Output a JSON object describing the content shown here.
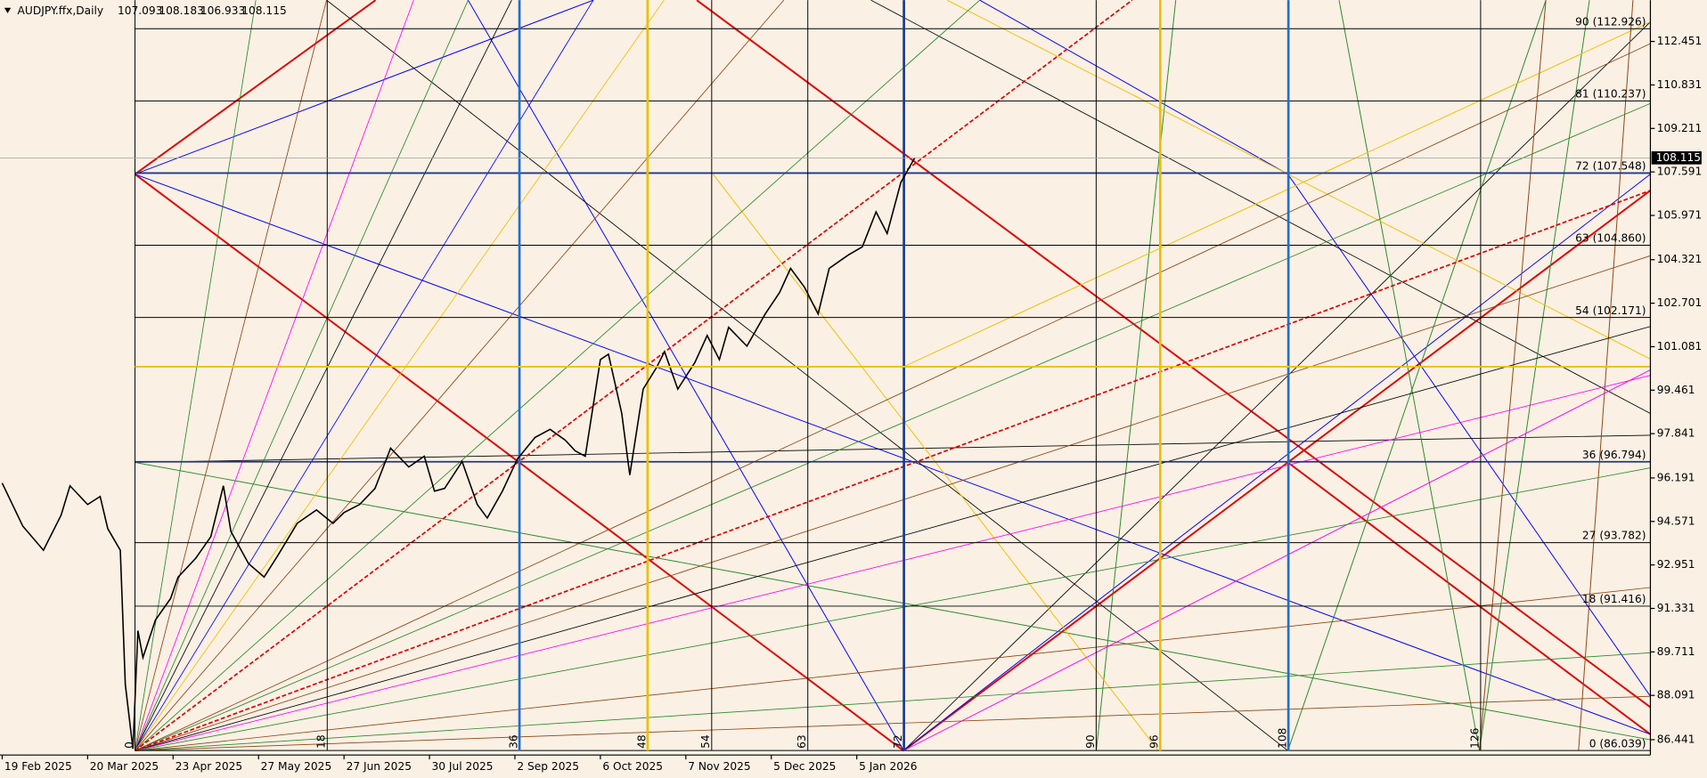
{
  "chart_data": {
    "type": "line",
    "title": "AUDJPY.ffx,Daily",
    "ohlc": [
      107.093,
      108.183,
      106.933,
      108.115
    ],
    "xticks": [
      {
        "value": "2025-02-19",
        "label": "19 Feb 2025"
      },
      {
        "value": "2025-03-20",
        "label": "20 Mar 2025"
      },
      {
        "value": "2025-04-23",
        "label": "23 Apr 2025"
      },
      {
        "value": "2025-05-27",
        "label": "27 May 2025"
      },
      {
        "value": "2025-06-27",
        "label": "27 Jun 2025"
      },
      {
        "value": "2025-07-30",
        "label": "30 Jul 2025"
      },
      {
        "value": "2025-09-02",
        "label": "2 Sep 2025"
      },
      {
        "value": "2025-10-06",
        "label": "6 Oct 2025"
      },
      {
        "value": "2025-11-07",
        "label": "7 Nov 2025"
      },
      {
        "value": "2025-12-05",
        "label": "5 Dec 2025"
      },
      {
        "value": "2026-01-05",
        "label": "5 Jan 2026"
      }
    ],
    "ylim": [
      85.87,
      113.99
    ],
    "yticks": [
      112.451,
      110.831,
      109.211,
      107.591,
      105.971,
      104.321,
      102.701,
      101.081,
      99.461,
      97.841,
      96.191,
      94.571,
      92.951,
      91.331,
      89.711,
      88.091,
      86.441
    ],
    "x": [
      "2025-02-19",
      "2025-02-26",
      "2025-03-05",
      "2025-03-11",
      "2025-03-14",
      "2025-03-20",
      "2025-03-25",
      "2025-03-28",
      "2025-04-02",
      "2025-04-04",
      "2025-04-07",
      "2025-04-09",
      "2025-04-11",
      "2025-04-16",
      "2025-04-22",
      "2025-04-25",
      "2025-05-02",
      "2025-05-08",
      "2025-05-13",
      "2025-05-16",
      "2025-05-23",
      "2025-05-29",
      "2025-06-03",
      "2025-06-10",
      "2025-06-17",
      "2025-06-23",
      "2025-06-27",
      "2025-07-03",
      "2025-07-09",
      "2025-07-15",
      "2025-07-22",
      "2025-07-28",
      "2025-08-01",
      "2025-08-05",
      "2025-08-12",
      "2025-08-18",
      "2025-08-22",
      "2025-08-28",
      "2025-09-03",
      "2025-09-10",
      "2025-09-16",
      "2025-09-22",
      "2025-09-26",
      "2025-09-30",
      "2025-10-06",
      "2025-10-09",
      "2025-10-14",
      "2025-10-17",
      "2025-10-22",
      "2025-10-27",
      "2025-10-30",
      "2025-11-04",
      "2025-11-10",
      "2025-11-14",
      "2025-11-18",
      "2025-11-21",
      "2025-11-27",
      "2025-12-03",
      "2025-12-08",
      "2025-12-12",
      "2025-12-17",
      "2025-12-22",
      "2025-12-26",
      "2026-01-02",
      "2026-01-07",
      "2026-01-12",
      "2026-01-16",
      "2026-01-21",
      "2026-01-26"
    ],
    "series": [
      {
        "name": "AUDJPY.ffx",
        "color": "#000000",
        "values": [
          96.0,
          94.4,
          93.5,
          94.8,
          95.9,
          95.2,
          95.5,
          94.3,
          93.5,
          88.5,
          86.1,
          90.5,
          89.5,
          90.9,
          91.7,
          92.5,
          93.2,
          94.0,
          95.9,
          94.2,
          93.0,
          92.5,
          93.3,
          94.5,
          95.0,
          94.5,
          94.9,
          95.2,
          95.8,
          97.3,
          96.6,
          97.0,
          95.7,
          95.8,
          96.8,
          95.2,
          94.7,
          95.7,
          96.9,
          97.7,
          98.0,
          97.6,
          97.2,
          97.0,
          100.6,
          100.8,
          98.6,
          96.3,
          99.5,
          100.3,
          100.9,
          99.5,
          100.5,
          101.5,
          100.6,
          101.8,
          101.1,
          102.3,
          103.1,
          104.0,
          103.3,
          102.3,
          104.0,
          104.5,
          104.8,
          106.1,
          105.3,
          107.2,
          108.115
        ]
      }
    ],
    "price_levels": [
      {
        "value": 86.039,
        "label": "0 (86.039)"
      },
      {
        "value": 91.416,
        "label": "18 (91.416)"
      },
      {
        "value": 93.782,
        "label": "27 (93.782)"
      },
      {
        "value": 96.794,
        "label": "36 (96.794)"
      },
      {
        "value": 102.171,
        "label": "54 (102.171)"
      },
      {
        "value": 104.86,
        "label": "63 (104.860)"
      },
      {
        "value": 107.548,
        "label": "72 (107.548)"
      },
      {
        "value": 110.237,
        "label": "81 (110.237)"
      },
      {
        "value": 112.926,
        "label": "90 (112.926)"
      }
    ],
    "time_levels": [
      0,
      18,
      36,
      48,
      54,
      63,
      72,
      90,
      96,
      108,
      126
    ],
    "time_level_colors": [
      "#000000",
      "#000000",
      "#1e6fd0",
      "#e8c000",
      "#000000",
      "#000000",
      "#1a3a8a",
      "#000000",
      "#e8c000",
      "#1e6fd0",
      "#000000"
    ]
  }
}
